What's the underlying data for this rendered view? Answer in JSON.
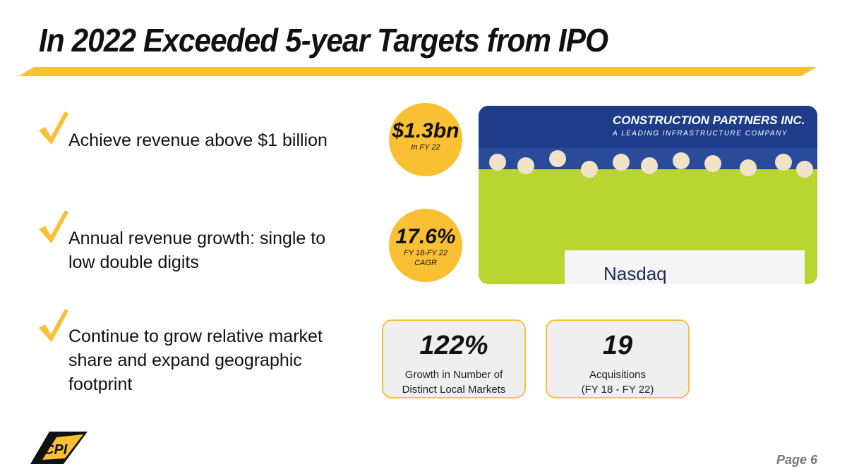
{
  "header": {
    "title": "In 2022 Exceeded 5-year Targets from IPO"
  },
  "bullets": [
    {
      "lines": [
        "Achieve revenue above $1 billion"
      ]
    },
    {
      "lines": [
        "Annual revenue growth: single to",
        "low double digits"
      ]
    },
    {
      "lines": [
        "Continue to grow relative market",
        "share and expand geographic",
        "footprint"
      ]
    }
  ],
  "circles": [
    {
      "value": "$1.3bn",
      "caption": [
        "In FY 22"
      ]
    },
    {
      "value": "17.6%",
      "caption": [
        "FY 18-FY 22",
        "CAGR"
      ]
    }
  ],
  "boxes": [
    {
      "value": "122%",
      "caption": [
        "Growth in Number of",
        "Distinct Local Markets"
      ]
    },
    {
      "value": "19",
      "caption": [
        "Acquisitions",
        "(FY 18 - FY 22)"
      ]
    }
  ],
  "photo": {
    "banner": "CONSTRUCTION PARTNERS INC.",
    "tagline": "A LEADING INFRASTRUCTURE COMPANY",
    "podium": "Nasdaq"
  },
  "footer": {
    "logo": "CPI",
    "page": "Page 6"
  }
}
